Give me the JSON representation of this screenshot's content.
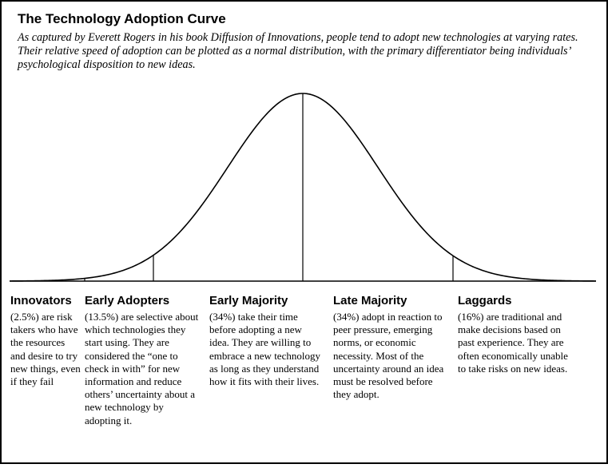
{
  "title": "The Technology Adoption Curve",
  "subtitle": "As captured by Everett Rogers in his book Diffusion of Innovations, people tend to adopt new technologies at varying rates. Their relative speed of adoption can be plotted as a normal distribution, with the primary differentiator being individuals’ psychological disposition to new ideas.",
  "categories": [
    {
      "name": "Innovators",
      "description": "(2.5%) are risk takers who have the resources and desire to try new things, even if they fail"
    },
    {
      "name": "Early Adopters",
      "description": "(13.5%) are selective about which technologies they start using. They are considered the “one to check in with” for new information and reduce others’ uncertainty about a new technology by adopting it."
    },
    {
      "name": "Early Majority",
      "description": "(34%) take their time before adopting a new idea. They are willing to embrace a new technology as long as they understand how it fits with their lives."
    },
    {
      "name": "Late Majority",
      "description": "(34%) adopt in reaction to peer pressure, emerging norms, or economic necessity. Most of the uncertainty around an idea must be resolved before they adopt."
    },
    {
      "name": "Laggards",
      "description": "(16%) are traditional and make decisions based on past experience. They are often economically unable to take risks on new ideas."
    }
  ]
}
